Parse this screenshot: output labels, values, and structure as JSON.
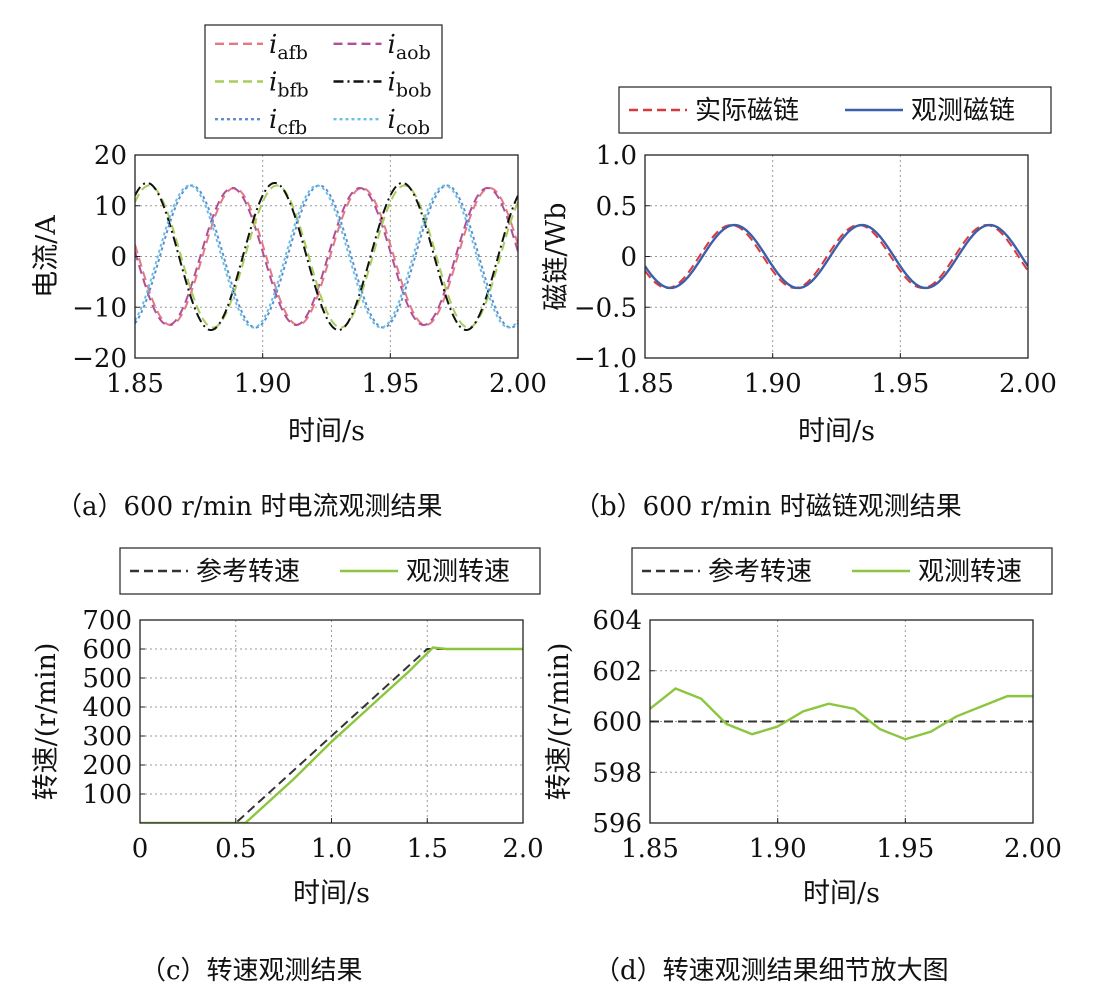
{
  "chart_data": [
    {
      "panel": "a",
      "type": "line",
      "caption": "（a）600 r/min 时电流观测结果",
      "xlabel": "时间/s",
      "ylabel": "电流/A",
      "xlim": [
        1.85,
        2.0
      ],
      "ylim": [
        -20,
        20
      ],
      "xticks": [
        1.85,
        1.9,
        1.95,
        2.0
      ],
      "xtick_labels": [
        "1.85",
        "1.90",
        "1.95",
        "2.00"
      ],
      "yticks": [
        -20,
        -10,
        0,
        10,
        20
      ],
      "ytick_labels": [
        "−20",
        "−10",
        "0",
        "10",
        "20"
      ],
      "grid": true,
      "legend_position": "above",
      "legend_columns": 2,
      "series": [
        {
          "name": "afb",
          "symbol": "i",
          "sub": "afb",
          "style": "dashed",
          "color": "#e27a84",
          "waveform": {
            "amplitude": 13.5,
            "frequency_hz": 20,
            "phase_deg": 170
          }
        },
        {
          "name": "aob",
          "symbol": "i",
          "sub": "aob",
          "style": "dashed",
          "color": "#b04f98",
          "waveform": {
            "amplitude": 13.5,
            "frequency_hz": 20,
            "phase_deg": 176
          }
        },
        {
          "name": "bfb",
          "symbol": "i",
          "sub": "bfb",
          "style": "dashed",
          "color": "#a9cc5a",
          "waveform": {
            "amplitude": 14.0,
            "frequency_hz": 20,
            "phase_deg": 50
          }
        },
        {
          "name": "bob",
          "symbol": "i",
          "sub": "bob",
          "style": "dashdot",
          "color": "#111111",
          "waveform": {
            "amplitude": 14.5,
            "frequency_hz": 20,
            "phase_deg": 56
          }
        },
        {
          "name": "cfb",
          "symbol": "i",
          "sub": "cfb",
          "style": "dotted",
          "color": "#5b8fd0",
          "waveform": {
            "amplitude": 14.0,
            "frequency_hz": 20,
            "phase_deg": 290
          }
        },
        {
          "name": "cob",
          "symbol": "i",
          "sub": "cob",
          "style": "dotted",
          "color": "#69c0e4",
          "waveform": {
            "amplitude": 14.0,
            "frequency_hz": 20,
            "phase_deg": 296
          }
        }
      ]
    },
    {
      "panel": "b",
      "type": "line",
      "caption": "（b）600 r/min 时磁链观测结果",
      "xlabel": "时间/s",
      "ylabel": "磁链/Wb",
      "xlim": [
        1.85,
        2.0
      ],
      "ylim": [
        -1.0,
        1.0
      ],
      "xticks": [
        1.85,
        1.9,
        1.95,
        2.0
      ],
      "xtick_labels": [
        "1.85",
        "1.90",
        "1.95",
        "2.00"
      ],
      "yticks": [
        -1.0,
        -0.5,
        0,
        0.5,
        1.0
      ],
      "ytick_labels": [
        "−1.0",
        "−0.5",
        "0",
        "0.5",
        "1.0"
      ],
      "grid": true,
      "legend_position": "above",
      "legend_columns": 2,
      "series": [
        {
          "name": "实际磁链",
          "style": "dashed",
          "color": "#d9383f",
          "waveform": {
            "amplitude": 0.31,
            "frequency_hz": 20,
            "phase_deg": 207
          }
        },
        {
          "name": "观测磁链",
          "style": "solid",
          "color": "#3d5ea8",
          "waveform": {
            "amplitude": 0.31,
            "frequency_hz": 20,
            "phase_deg": 198
          }
        }
      ]
    },
    {
      "panel": "c",
      "type": "line",
      "caption": "（c）转速观测结果",
      "xlabel": "时间/s",
      "ylabel": "转速/(r/min)",
      "xlim": [
        0,
        2.0
      ],
      "ylim": [
        0,
        700
      ],
      "xticks": [
        0,
        0.5,
        1.0,
        1.5,
        2.0
      ],
      "xtick_labels": [
        "0",
        "0.5",
        "1.0",
        "1.5",
        "2.0"
      ],
      "yticks": [
        100,
        200,
        300,
        400,
        500,
        600,
        700
      ],
      "ytick_labels": [
        "100",
        "200",
        "300",
        "400",
        "500",
        "600",
        "700"
      ],
      "grid": true,
      "legend_position": "above",
      "legend_columns": 2,
      "series": [
        {
          "name": "参考转速",
          "style": "dashed",
          "color": "#333333",
          "x": [
            0,
            0.5,
            1.5,
            2.0
          ],
          "y": [
            0,
            0,
            600,
            600
          ]
        },
        {
          "name": "观测转速",
          "style": "solid",
          "color": "#8cc63f",
          "x": [
            0,
            0.55,
            0.65,
            0.8,
            1.0,
            1.2,
            1.4,
            1.53,
            1.6,
            2.0
          ],
          "y": [
            0,
            0,
            60,
            150,
            280,
            400,
            520,
            605,
            600,
            600
          ]
        }
      ]
    },
    {
      "panel": "d",
      "type": "line",
      "caption": "（d）转速观测结果细节放大图",
      "xlabel": "时间/s",
      "ylabel": "转速/(r/min)",
      "xlim": [
        1.85,
        2.0
      ],
      "ylim": [
        596,
        604
      ],
      "xticks": [
        1.85,
        1.9,
        1.95,
        2.0
      ],
      "xtick_labels": [
        "1.85",
        "1.90",
        "1.95",
        "2.00"
      ],
      "yticks": [
        596,
        598,
        600,
        602,
        604
      ],
      "ytick_labels": [
        "596",
        "598",
        "600",
        "602",
        "604"
      ],
      "grid": true,
      "legend_position": "above",
      "legend_columns": 2,
      "series": [
        {
          "name": "参考转速",
          "style": "dashed",
          "color": "#333333",
          "x": [
            1.85,
            2.0
          ],
          "y": [
            600,
            600
          ]
        },
        {
          "name": "观测转速",
          "style": "solid",
          "color": "#8cc63f",
          "x": [
            1.85,
            1.86,
            1.87,
            1.88,
            1.89,
            1.9,
            1.91,
            1.92,
            1.93,
            1.94,
            1.95,
            1.96,
            1.97,
            1.98,
            1.99,
            2.0
          ],
          "y": [
            600.5,
            601.3,
            600.9,
            599.9,
            599.5,
            599.8,
            600.4,
            600.7,
            600.5,
            599.7,
            599.3,
            599.6,
            600.2,
            600.6,
            601.0,
            601.0
          ]
        }
      ]
    }
  ]
}
